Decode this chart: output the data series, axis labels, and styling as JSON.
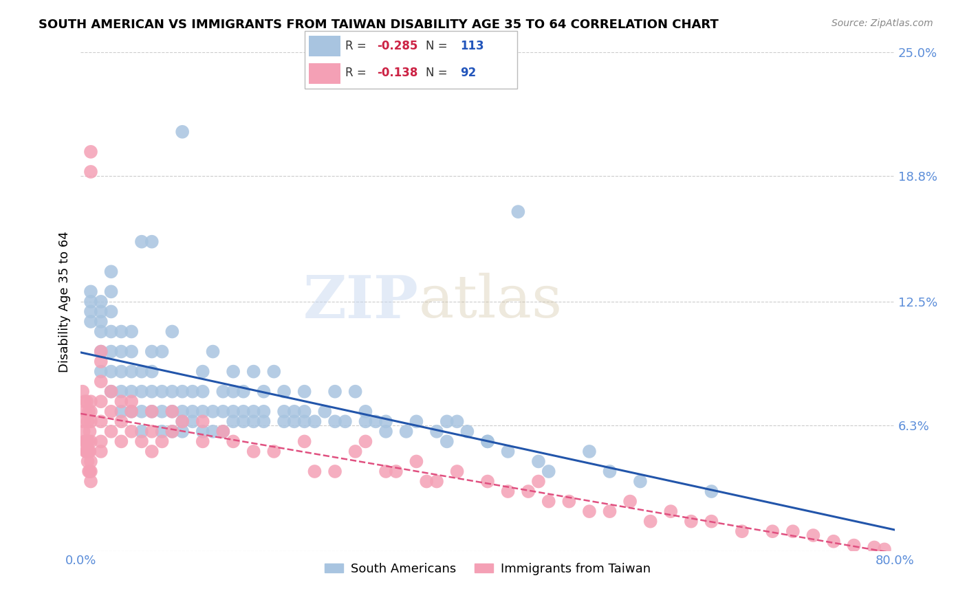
{
  "title": "SOUTH AMERICAN VS IMMIGRANTS FROM TAIWAN DISABILITY AGE 35 TO 64 CORRELATION CHART",
  "source": "Source: ZipAtlas.com",
  "ylabel": "Disability Age 35 to 64",
  "xmin": 0.0,
  "xmax": 0.8,
  "ymin": 0.0,
  "ymax": 0.25,
  "blue_R": -0.285,
  "blue_N": 113,
  "pink_R": -0.138,
  "pink_N": 92,
  "blue_color": "#a8c4e0",
  "pink_color": "#f4a0b5",
  "blue_line_color": "#2255aa",
  "pink_line_color": "#e05080",
  "watermark_zip": "ZIP",
  "watermark_atlas": "atlas",
  "legend_blue_label": "South Americans",
  "legend_pink_label": "Immigrants from Taiwan",
  "blue_scatter_x": [
    0.01,
    0.01,
    0.01,
    0.01,
    0.02,
    0.02,
    0.02,
    0.02,
    0.02,
    0.02,
    0.03,
    0.03,
    0.03,
    0.03,
    0.03,
    0.03,
    0.03,
    0.04,
    0.04,
    0.04,
    0.04,
    0.04,
    0.05,
    0.05,
    0.05,
    0.05,
    0.05,
    0.06,
    0.06,
    0.06,
    0.06,
    0.06,
    0.07,
    0.07,
    0.07,
    0.07,
    0.07,
    0.08,
    0.08,
    0.08,
    0.08,
    0.09,
    0.09,
    0.09,
    0.09,
    0.1,
    0.1,
    0.1,
    0.1,
    0.1,
    0.11,
    0.11,
    0.11,
    0.12,
    0.12,
    0.12,
    0.12,
    0.13,
    0.13,
    0.13,
    0.14,
    0.14,
    0.14,
    0.15,
    0.15,
    0.15,
    0.15,
    0.16,
    0.16,
    0.16,
    0.17,
    0.17,
    0.17,
    0.18,
    0.18,
    0.18,
    0.19,
    0.2,
    0.2,
    0.2,
    0.21,
    0.21,
    0.22,
    0.22,
    0.22,
    0.23,
    0.24,
    0.25,
    0.25,
    0.26,
    0.27,
    0.28,
    0.28,
    0.29,
    0.3,
    0.3,
    0.32,
    0.33,
    0.35,
    0.36,
    0.36,
    0.37,
    0.38,
    0.4,
    0.4,
    0.42,
    0.43,
    0.45,
    0.46,
    0.5,
    0.52,
    0.55,
    0.62
  ],
  "blue_scatter_y": [
    0.115,
    0.12,
    0.125,
    0.13,
    0.09,
    0.1,
    0.11,
    0.115,
    0.12,
    0.125,
    0.08,
    0.09,
    0.1,
    0.11,
    0.12,
    0.13,
    0.14,
    0.07,
    0.08,
    0.09,
    0.1,
    0.11,
    0.07,
    0.08,
    0.09,
    0.1,
    0.11,
    0.06,
    0.07,
    0.08,
    0.09,
    0.155,
    0.07,
    0.08,
    0.09,
    0.1,
    0.155,
    0.06,
    0.07,
    0.08,
    0.1,
    0.06,
    0.07,
    0.08,
    0.11,
    0.06,
    0.065,
    0.07,
    0.08,
    0.21,
    0.065,
    0.07,
    0.08,
    0.06,
    0.07,
    0.08,
    0.09,
    0.06,
    0.07,
    0.1,
    0.06,
    0.07,
    0.08,
    0.065,
    0.07,
    0.08,
    0.09,
    0.065,
    0.07,
    0.08,
    0.065,
    0.07,
    0.09,
    0.065,
    0.07,
    0.08,
    0.09,
    0.065,
    0.07,
    0.08,
    0.065,
    0.07,
    0.065,
    0.07,
    0.08,
    0.065,
    0.07,
    0.065,
    0.08,
    0.065,
    0.08,
    0.07,
    0.065,
    0.065,
    0.06,
    0.065,
    0.06,
    0.065,
    0.06,
    0.055,
    0.065,
    0.065,
    0.06,
    0.055,
    0.055,
    0.05,
    0.17,
    0.045,
    0.04,
    0.05,
    0.04,
    0.035,
    0.03
  ],
  "pink_scatter_x": [
    0.002,
    0.003,
    0.003,
    0.004,
    0.004,
    0.005,
    0.005,
    0.005,
    0.006,
    0.006,
    0.006,
    0.007,
    0.007,
    0.007,
    0.008,
    0.008,
    0.008,
    0.008,
    0.009,
    0.009,
    0.009,
    0.01,
    0.01,
    0.01,
    0.01,
    0.01,
    0.01,
    0.01,
    0.01,
    0.01,
    0.02,
    0.02,
    0.02,
    0.02,
    0.02,
    0.02,
    0.02,
    0.03,
    0.03,
    0.03,
    0.04,
    0.04,
    0.04,
    0.05,
    0.05,
    0.05,
    0.06,
    0.07,
    0.07,
    0.07,
    0.08,
    0.09,
    0.09,
    0.1,
    0.12,
    0.12,
    0.14,
    0.15,
    0.17,
    0.19,
    0.22,
    0.23,
    0.25,
    0.27,
    0.28,
    0.3,
    0.31,
    0.33,
    0.34,
    0.35,
    0.37,
    0.4,
    0.42,
    0.44,
    0.45,
    0.46,
    0.48,
    0.5,
    0.52,
    0.54,
    0.56,
    0.58,
    0.6,
    0.62,
    0.65,
    0.68,
    0.7,
    0.72,
    0.74,
    0.76,
    0.78,
    0.79
  ],
  "pink_scatter_y": [
    0.08,
    0.06,
    0.065,
    0.055,
    0.075,
    0.05,
    0.055,
    0.07,
    0.05,
    0.055,
    0.075,
    0.045,
    0.05,
    0.065,
    0.04,
    0.05,
    0.055,
    0.07,
    0.04,
    0.05,
    0.06,
    0.035,
    0.04,
    0.045,
    0.055,
    0.065,
    0.07,
    0.075,
    0.19,
    0.2,
    0.05,
    0.055,
    0.065,
    0.075,
    0.085,
    0.095,
    0.1,
    0.06,
    0.07,
    0.08,
    0.055,
    0.065,
    0.075,
    0.06,
    0.07,
    0.075,
    0.055,
    0.05,
    0.06,
    0.07,
    0.055,
    0.06,
    0.07,
    0.065,
    0.055,
    0.065,
    0.06,
    0.055,
    0.05,
    0.05,
    0.055,
    0.04,
    0.04,
    0.05,
    0.055,
    0.04,
    0.04,
    0.045,
    0.035,
    0.035,
    0.04,
    0.035,
    0.03,
    0.03,
    0.035,
    0.025,
    0.025,
    0.02,
    0.02,
    0.025,
    0.015,
    0.02,
    0.015,
    0.015,
    0.01,
    0.01,
    0.01,
    0.008,
    0.005,
    0.003,
    0.002,
    0.001
  ]
}
